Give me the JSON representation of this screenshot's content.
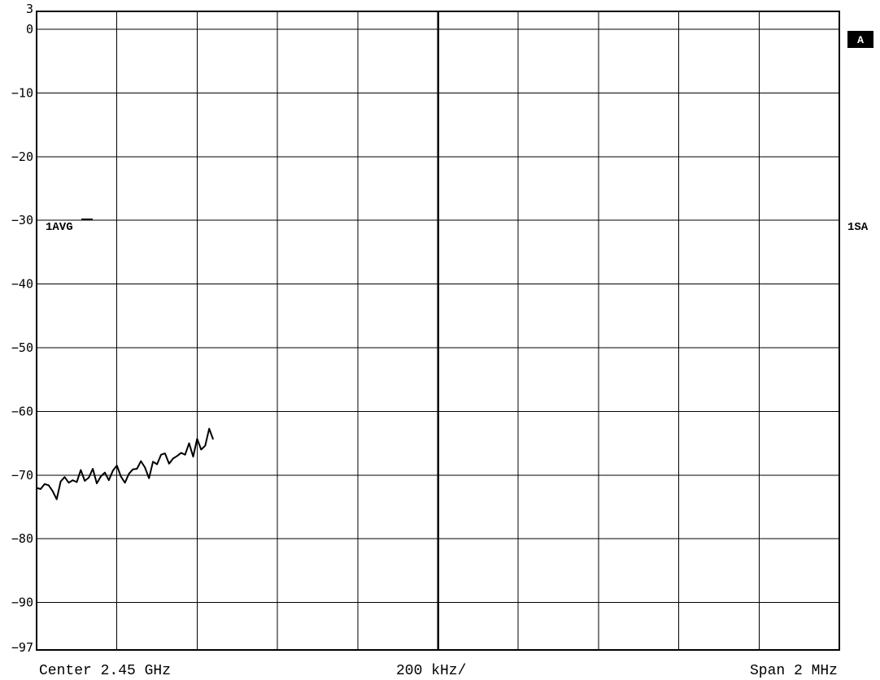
{
  "chart_data": {
    "type": "line",
    "ylim": [
      -97,
      3
    ],
    "xlim": [
      2.449,
      2.451
    ],
    "x_unit": "GHz",
    "y_ticks": [
      3,
      0,
      -10,
      -20,
      -30,
      -40,
      -50,
      -60,
      -70,
      -80,
      -90,
      -97
    ],
    "y_tick_labels": [
      "3",
      "0",
      "−10",
      "−20",
      "−30",
      "−40",
      "−50",
      "−60",
      "−70",
      "−80",
      "−90",
      "−97"
    ],
    "x_divisions": 10,
    "grid": true,
    "trace_label": "1AVG",
    "trace_label_level": -30,
    "right_marker": "1SA",
    "badge": "A",
    "footer": {
      "center": "Center 2.45 GHz",
      "per_div": "200 kHz/",
      "span": "Span 2 MHz"
    },
    "series": [
      {
        "x": [
          2.449,
          2.44901,
          2.44902,
          2.44903,
          2.44904,
          2.44905,
          2.44906,
          2.44907,
          2.44908,
          2.44909,
          2.4491,
          2.44911,
          2.44912,
          2.44913,
          2.44914,
          2.44915,
          2.44916,
          2.44917,
          2.44918,
          2.44919,
          2.4492,
          2.44921,
          2.44922,
          2.44923,
          2.44924,
          2.44925,
          2.44926,
          2.44927,
          2.44928,
          2.44929,
          2.4493,
          2.44931,
          2.44932,
          2.44933,
          2.44934,
          2.44935,
          2.44936,
          2.44937,
          2.44938,
          2.44939,
          2.4494,
          2.44941,
          2.44942,
          2.44943,
          2.44944
        ],
        "y": [
          -72,
          -72.2,
          -71.4,
          -71.6,
          -72.5,
          -73.8,
          -71.0,
          -70.3,
          -71.2,
          -70.8,
          -71.1,
          -69.2,
          -70.9,
          -70.4,
          -69.0,
          -71.3,
          -70.2,
          -69.6,
          -70.8,
          -69.3,
          -68.5,
          -70.2,
          -71.2,
          -69.8,
          -69.1,
          -69.0,
          -67.8,
          -68.8,
          -70.5,
          -67.9,
          -68.3,
          -66.8,
          -66.6,
          -68.2,
          -67.4,
          -67.0,
          -66.5,
          -66.8,
          -65.0,
          -67.1,
          -64.3,
          -66.0,
          -65.4,
          -62.7,
          -64.4
        ]
      }
    ]
  }
}
